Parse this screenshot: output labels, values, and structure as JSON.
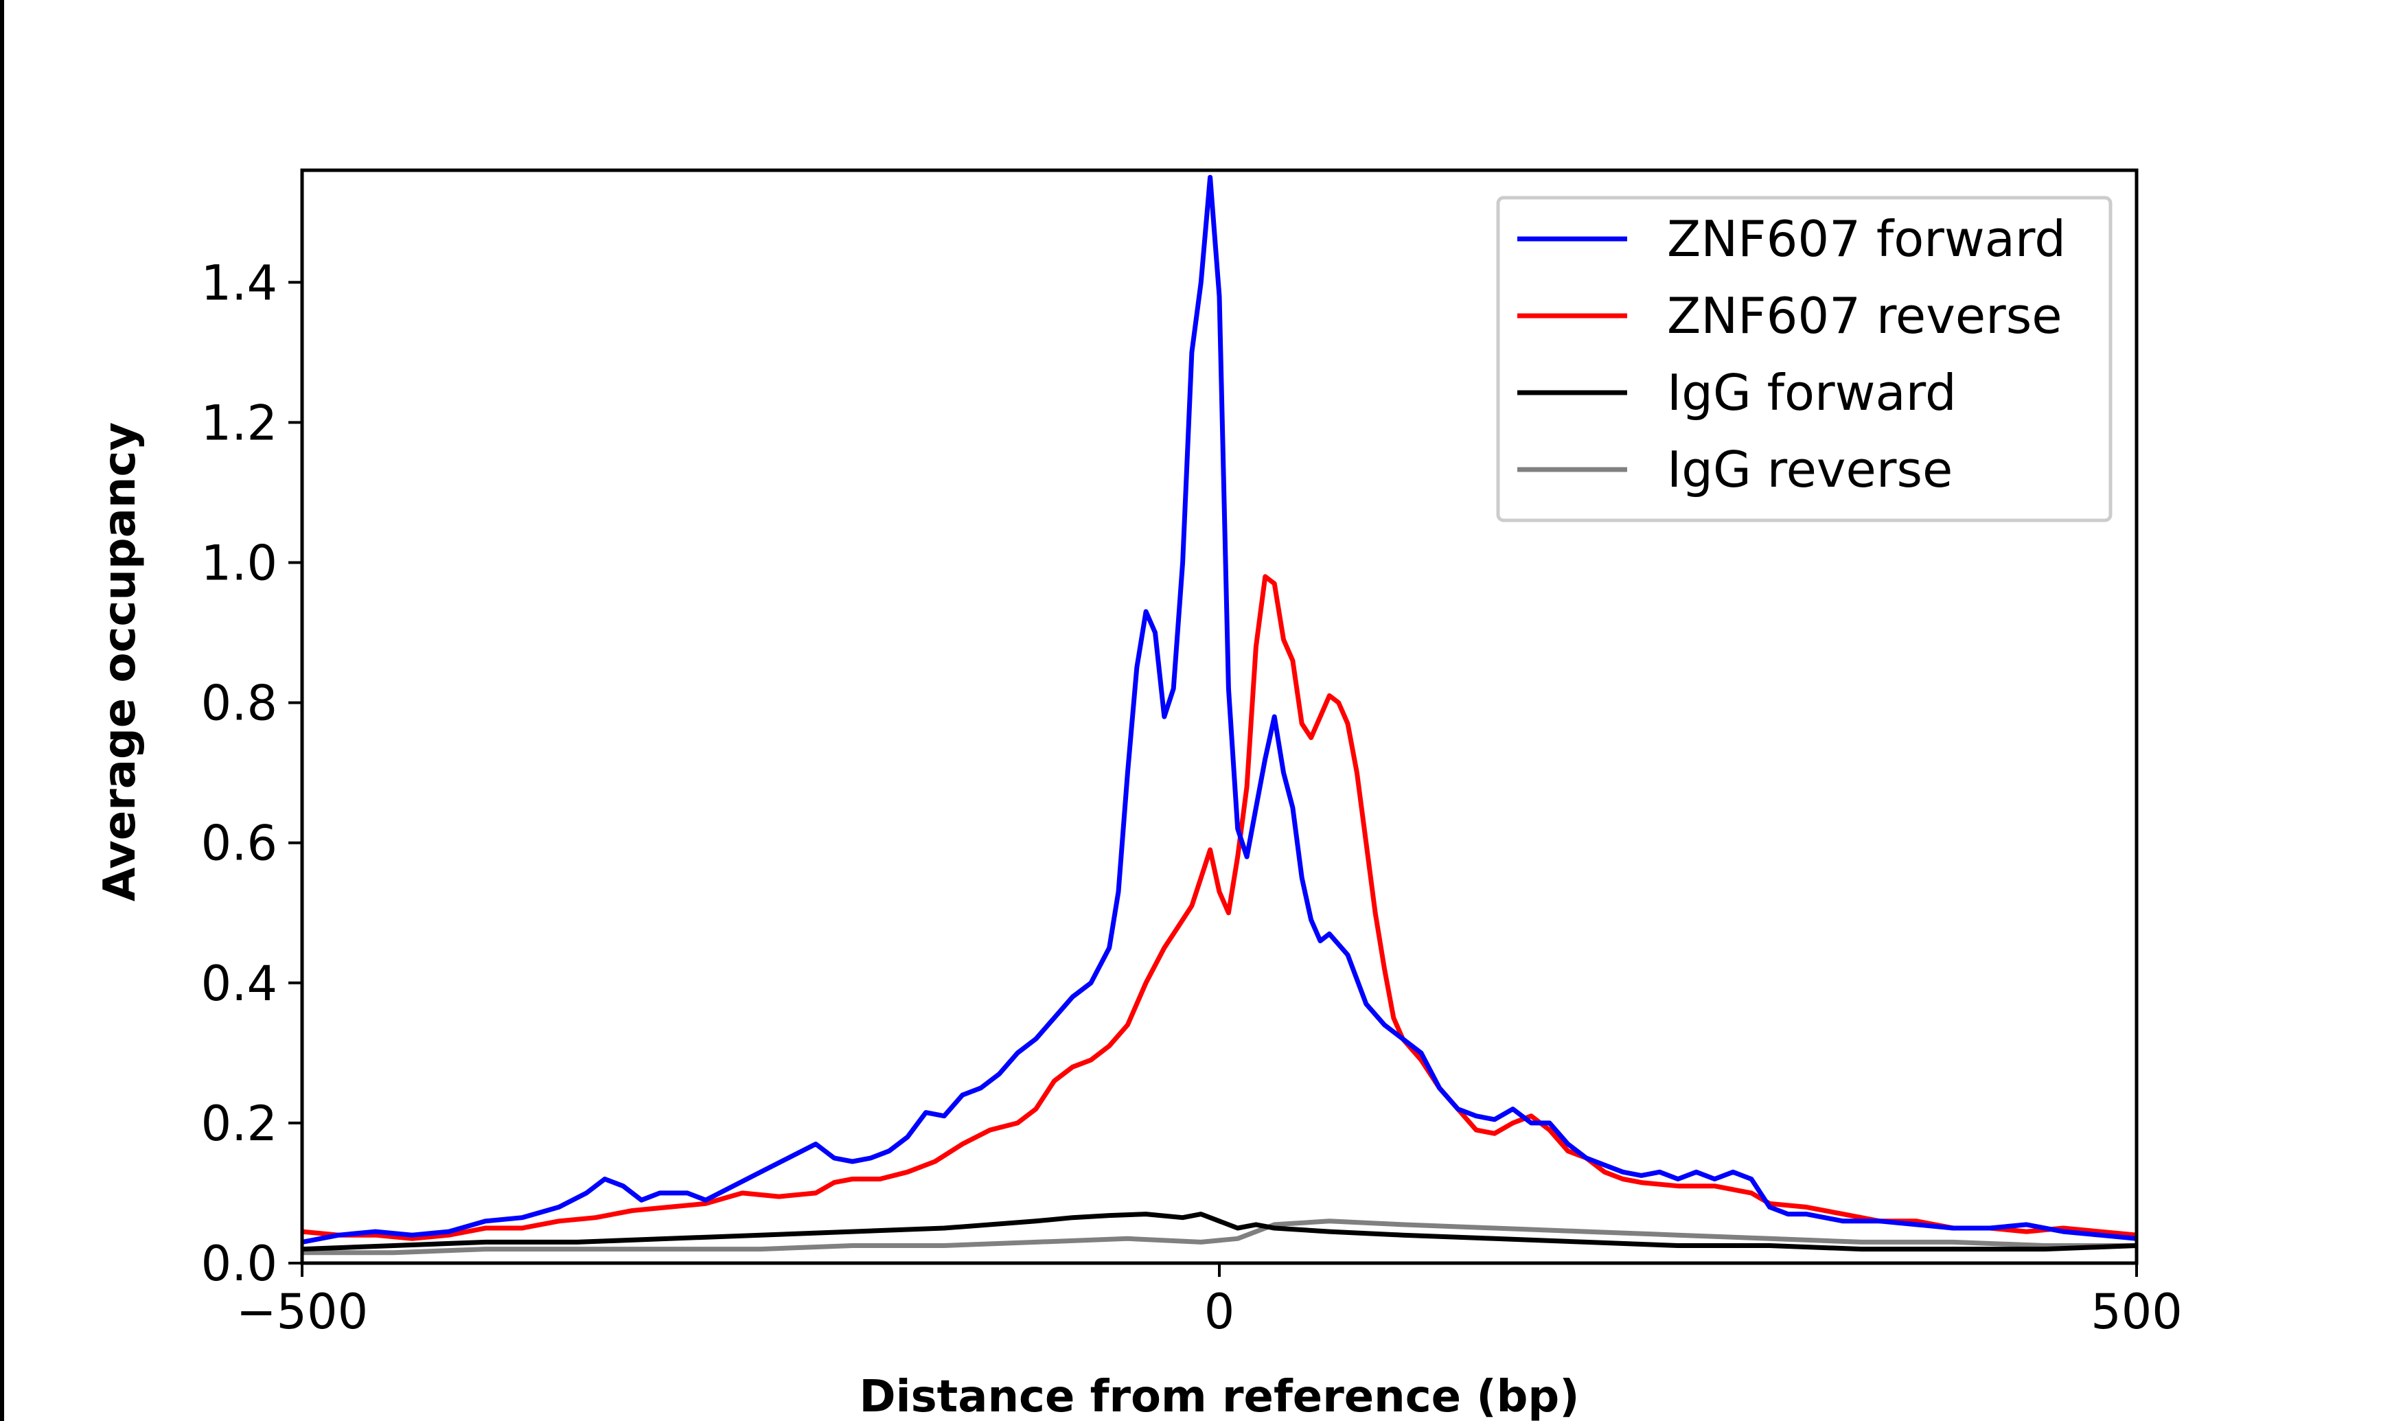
{
  "chart_data": {
    "type": "line",
    "title": "",
    "xlabel": "Distance from reference (bp)",
    "ylabel": "Average occupancy",
    "xlim": [
      -500,
      500
    ],
    "ylim": [
      0,
      1.56
    ],
    "x_ticks": [
      -500,
      0,
      500
    ],
    "x_tick_labels": [
      "−500",
      "0",
      "500"
    ],
    "y_ticks": [
      0.0,
      0.2,
      0.4,
      0.6,
      0.8,
      1.0,
      1.2,
      1.4
    ],
    "y_tick_labels": [
      "0.0",
      "0.2",
      "0.4",
      "0.6",
      "0.8",
      "1.0",
      "1.2",
      "1.4"
    ],
    "grid": false,
    "legend_position": "top-right",
    "series": [
      {
        "name": "ZNF607 forward",
        "color": "#0000ff",
        "points": [
          [
            -500,
            0.03
          ],
          [
            -480,
            0.04
          ],
          [
            -460,
            0.045
          ],
          [
            -440,
            0.04
          ],
          [
            -420,
            0.045
          ],
          [
            -400,
            0.06
          ],
          [
            -380,
            0.065
          ],
          [
            -360,
            0.08
          ],
          [
            -345,
            0.1
          ],
          [
            -335,
            0.12
          ],
          [
            -325,
            0.11
          ],
          [
            -315,
            0.09
          ],
          [
            -305,
            0.1
          ],
          [
            -290,
            0.1
          ],
          [
            -280,
            0.09
          ],
          [
            -265,
            0.11
          ],
          [
            -250,
            0.13
          ],
          [
            -235,
            0.15
          ],
          [
            -220,
            0.17
          ],
          [
            -210,
            0.15
          ],
          [
            -200,
            0.145
          ],
          [
            -190,
            0.15
          ],
          [
            -180,
            0.16
          ],
          [
            -170,
            0.18
          ],
          [
            -160,
            0.215
          ],
          [
            -150,
            0.21
          ],
          [
            -140,
            0.24
          ],
          [
            -130,
            0.25
          ],
          [
            -120,
            0.27
          ],
          [
            -110,
            0.3
          ],
          [
            -100,
            0.32
          ],
          [
            -90,
            0.35
          ],
          [
            -80,
            0.38
          ],
          [
            -70,
            0.4
          ],
          [
            -60,
            0.45
          ],
          [
            -55,
            0.53
          ],
          [
            -50,
            0.7
          ],
          [
            -45,
            0.85
          ],
          [
            -40,
            0.93
          ],
          [
            -35,
            0.9
          ],
          [
            -30,
            0.78
          ],
          [
            -25,
            0.82
          ],
          [
            -20,
            1.0
          ],
          [
            -15,
            1.3
          ],
          [
            -10,
            1.4
          ],
          [
            -5,
            1.55
          ],
          [
            0,
            1.38
          ],
          [
            5,
            0.82
          ],
          [
            10,
            0.62
          ],
          [
            15,
            0.58
          ],
          [
            20,
            0.65
          ],
          [
            25,
            0.72
          ],
          [
            30,
            0.78
          ],
          [
            35,
            0.7
          ],
          [
            40,
            0.65
          ],
          [
            45,
            0.55
          ],
          [
            50,
            0.49
          ],
          [
            55,
            0.46
          ],
          [
            60,
            0.47
          ],
          [
            70,
            0.44
          ],
          [
            80,
            0.37
          ],
          [
            90,
            0.34
          ],
          [
            100,
            0.32
          ],
          [
            110,
            0.3
          ],
          [
            120,
            0.25
          ],
          [
            130,
            0.22
          ],
          [
            140,
            0.21
          ],
          [
            150,
            0.205
          ],
          [
            160,
            0.22
          ],
          [
            170,
            0.2
          ],
          [
            180,
            0.2
          ],
          [
            190,
            0.17
          ],
          [
            200,
            0.15
          ],
          [
            210,
            0.14
          ],
          [
            220,
            0.13
          ],
          [
            230,
            0.125
          ],
          [
            240,
            0.13
          ],
          [
            250,
            0.12
          ],
          [
            260,
            0.13
          ],
          [
            270,
            0.12
          ],
          [
            280,
            0.13
          ],
          [
            290,
            0.12
          ],
          [
            300,
            0.08
          ],
          [
            310,
            0.07
          ],
          [
            320,
            0.07
          ],
          [
            340,
            0.06
          ],
          [
            360,
            0.06
          ],
          [
            380,
            0.055
          ],
          [
            400,
            0.05
          ],
          [
            420,
            0.05
          ],
          [
            440,
            0.055
          ],
          [
            460,
            0.045
          ],
          [
            480,
            0.04
          ],
          [
            500,
            0.035
          ]
        ]
      },
      {
        "name": "ZNF607 reverse",
        "color": "#ff0000",
        "points": [
          [
            -500,
            0.045
          ],
          [
            -480,
            0.04
          ],
          [
            -460,
            0.04
          ],
          [
            -440,
            0.035
          ],
          [
            -420,
            0.04
          ],
          [
            -400,
            0.05
          ],
          [
            -380,
            0.05
          ],
          [
            -360,
            0.06
          ],
          [
            -340,
            0.065
          ],
          [
            -320,
            0.075
          ],
          [
            -300,
            0.08
          ],
          [
            -280,
            0.085
          ],
          [
            -260,
            0.1
          ],
          [
            -240,
            0.095
          ],
          [
            -220,
            0.1
          ],
          [
            -210,
            0.115
          ],
          [
            -200,
            0.12
          ],
          [
            -185,
            0.12
          ],
          [
            -170,
            0.13
          ],
          [
            -155,
            0.145
          ],
          [
            -140,
            0.17
          ],
          [
            -125,
            0.19
          ],
          [
            -110,
            0.2
          ],
          [
            -100,
            0.22
          ],
          [
            -90,
            0.26
          ],
          [
            -80,
            0.28
          ],
          [
            -70,
            0.29
          ],
          [
            -60,
            0.31
          ],
          [
            -50,
            0.34
          ],
          [
            -40,
            0.4
          ],
          [
            -30,
            0.45
          ],
          [
            -25,
            0.47
          ],
          [
            -20,
            0.49
          ],
          [
            -15,
            0.51
          ],
          [
            -10,
            0.55
          ],
          [
            -5,
            0.59
          ],
          [
            0,
            0.53
          ],
          [
            5,
            0.5
          ],
          [
            10,
            0.58
          ],
          [
            15,
            0.68
          ],
          [
            20,
            0.88
          ],
          [
            25,
            0.98
          ],
          [
            30,
            0.97
          ],
          [
            35,
            0.89
          ],
          [
            40,
            0.86
          ],
          [
            45,
            0.77
          ],
          [
            50,
            0.75
          ],
          [
            55,
            0.78
          ],
          [
            60,
            0.81
          ],
          [
            65,
            0.8
          ],
          [
            70,
            0.77
          ],
          [
            75,
            0.7
          ],
          [
            80,
            0.6
          ],
          [
            85,
            0.5
          ],
          [
            90,
            0.42
          ],
          [
            95,
            0.35
          ],
          [
            100,
            0.32
          ],
          [
            110,
            0.29
          ],
          [
            120,
            0.25
          ],
          [
            130,
            0.22
          ],
          [
            140,
            0.19
          ],
          [
            150,
            0.185
          ],
          [
            160,
            0.2
          ],
          [
            170,
            0.21
          ],
          [
            180,
            0.19
          ],
          [
            190,
            0.16
          ],
          [
            200,
            0.15
          ],
          [
            210,
            0.13
          ],
          [
            220,
            0.12
          ],
          [
            230,
            0.115
          ],
          [
            250,
            0.11
          ],
          [
            270,
            0.11
          ],
          [
            290,
            0.1
          ],
          [
            300,
            0.085
          ],
          [
            320,
            0.08
          ],
          [
            340,
            0.07
          ],
          [
            360,
            0.06
          ],
          [
            380,
            0.06
          ],
          [
            400,
            0.05
          ],
          [
            420,
            0.05
          ],
          [
            440,
            0.045
          ],
          [
            460,
            0.05
          ],
          [
            480,
            0.045
          ],
          [
            500,
            0.04
          ]
        ]
      },
      {
        "name": "IgG forward",
        "color": "#000000",
        "points": [
          [
            -500,
            0.02
          ],
          [
            -450,
            0.025
          ],
          [
            -400,
            0.03
          ],
          [
            -350,
            0.03
          ],
          [
            -300,
            0.035
          ],
          [
            -250,
            0.04
          ],
          [
            -200,
            0.045
          ],
          [
            -150,
            0.05
          ],
          [
            -100,
            0.06
          ],
          [
            -80,
            0.065
          ],
          [
            -60,
            0.068
          ],
          [
            -40,
            0.07
          ],
          [
            -20,
            0.065
          ],
          [
            -10,
            0.07
          ],
          [
            0,
            0.06
          ],
          [
            10,
            0.05
          ],
          [
            20,
            0.055
          ],
          [
            30,
            0.05
          ],
          [
            60,
            0.045
          ],
          [
            100,
            0.04
          ],
          [
            150,
            0.035
          ],
          [
            200,
            0.03
          ],
          [
            250,
            0.025
          ],
          [
            300,
            0.025
          ],
          [
            350,
            0.02
          ],
          [
            400,
            0.02
          ],
          [
            450,
            0.02
          ],
          [
            500,
            0.025
          ]
        ]
      },
      {
        "name": "IgG reverse",
        "color": "#808080",
        "points": [
          [
            -500,
            0.015
          ],
          [
            -450,
            0.015
          ],
          [
            -400,
            0.02
          ],
          [
            -350,
            0.02
          ],
          [
            -300,
            0.02
          ],
          [
            -250,
            0.02
          ],
          [
            -200,
            0.025
          ],
          [
            -150,
            0.025
          ],
          [
            -100,
            0.03
          ],
          [
            -50,
            0.035
          ],
          [
            -10,
            0.03
          ],
          [
            10,
            0.035
          ],
          [
            30,
            0.055
          ],
          [
            60,
            0.06
          ],
          [
            100,
            0.055
          ],
          [
            150,
            0.05
          ],
          [
            200,
            0.045
          ],
          [
            250,
            0.04
          ],
          [
            300,
            0.035
          ],
          [
            350,
            0.03
          ],
          [
            400,
            0.03
          ],
          [
            450,
            0.025
          ],
          [
            500,
            0.025
          ]
        ]
      }
    ]
  }
}
